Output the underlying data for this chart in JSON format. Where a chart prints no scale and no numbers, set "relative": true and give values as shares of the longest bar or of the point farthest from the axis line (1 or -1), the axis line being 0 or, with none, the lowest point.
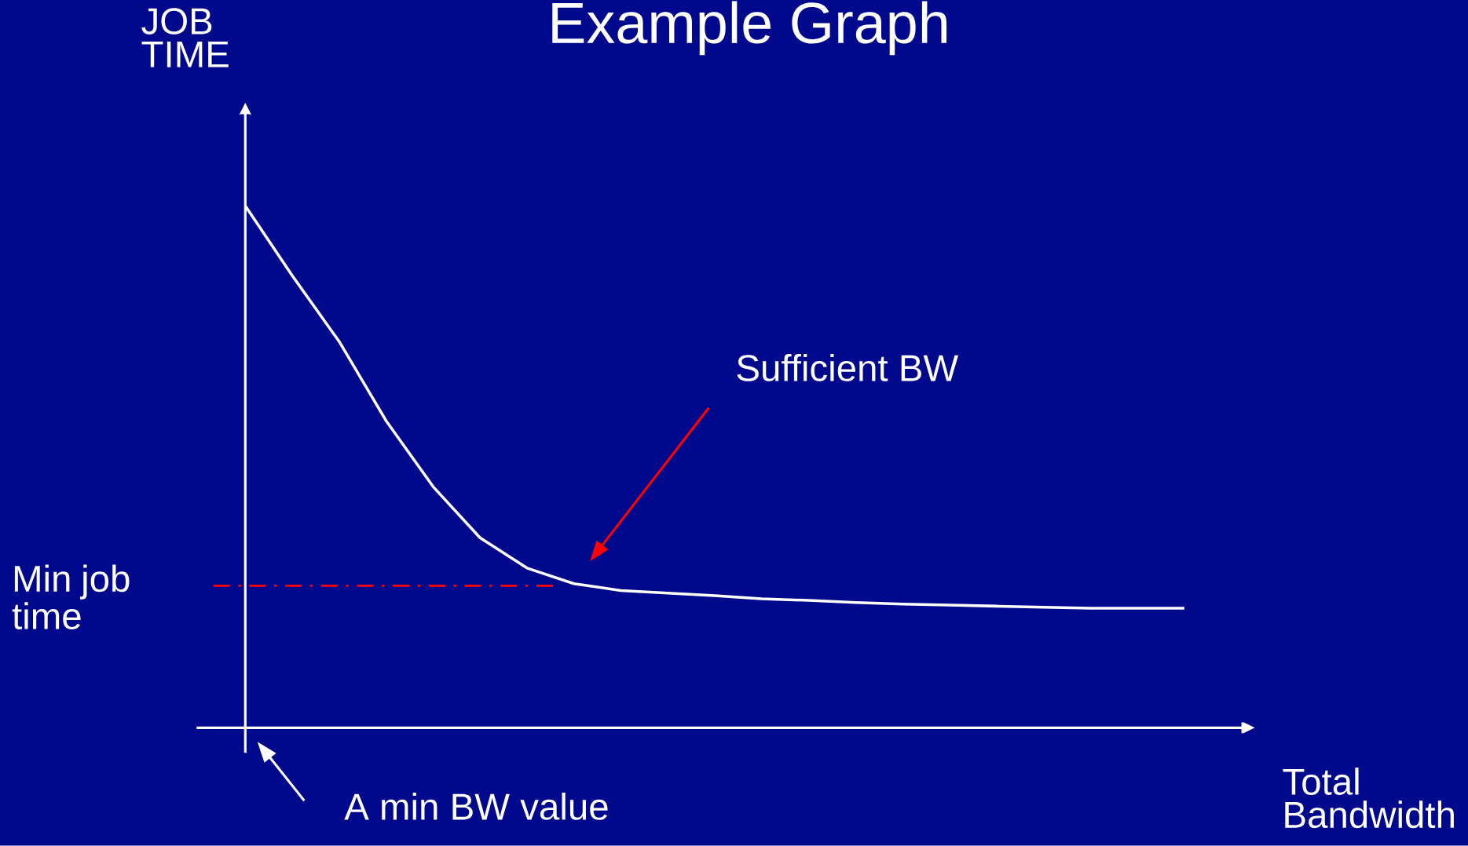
{
  "chart_data": {
    "type": "line",
    "title": "Example Graph",
    "xlabel": "Total Bandwidth",
    "ylabel": "JOB TIME",
    "relative": true,
    "categories": [
      null,
      null,
      null,
      null,
      null,
      null,
      null,
      null,
      null,
      null,
      null,
      null,
      null,
      null,
      null,
      null,
      null,
      null,
      null,
      null,
      null
    ],
    "series": [
      {
        "color": "#ffffff",
        "values": [
          1.0,
          0.866,
          0.74,
          0.588,
          0.462,
          0.364,
          0.306,
          0.276,
          0.263,
          0.258,
          0.253,
          0.247,
          0.244,
          0.24,
          0.237,
          0.235,
          0.233,
          0.231,
          0.229,
          0.229,
          0.229
        ]
      }
    ],
    "ref_lines": [
      {
        "axis": "y",
        "value": 0.272,
        "label": "Min job time",
        "color": "#ff0000",
        "line_style": "dashed"
      }
    ],
    "annotations": [
      "Sufficient BW",
      "A min BW value"
    ]
  }
}
